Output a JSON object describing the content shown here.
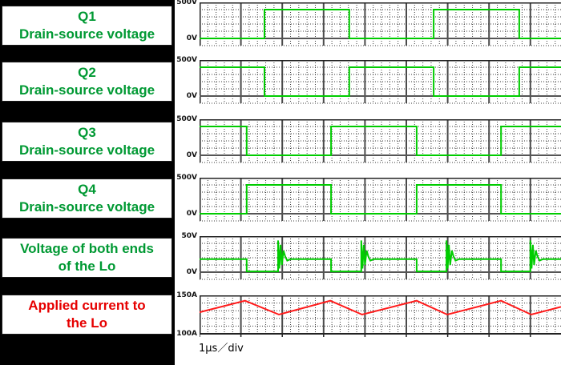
{
  "caption": "1μs／div",
  "colors": {
    "panel_bg": "#000000",
    "box_bg": "#ffffff",
    "text_green": "#009933",
    "text_red": "#e60000",
    "wave_green": "#00cc00",
    "wave_red": "#ff1a1a",
    "grid_minor": "#3a3a3a",
    "grid_major": "#4a4a4a",
    "axis_dark": "#222222",
    "zero_line": "#555555"
  },
  "chart_data": {
    "type": "line",
    "x_unit": "μs",
    "x_per_div": 1,
    "x_total_div": 8.74,
    "time_caption": "1μs／div",
    "panels": [
      {
        "label_lines": [
          "Q1",
          "Drain-source voltage"
        ],
        "label_color_key": "text_green",
        "wave_color_key": "wave_green",
        "y_top_label": "500V",
        "y_bottom_label": "0V",
        "ymax": 500,
        "ymin": 0,
        "points": [
          [
            0,
            0
          ],
          [
            1.57,
            0
          ],
          [
            1.57,
            400
          ],
          [
            3.62,
            400
          ],
          [
            3.62,
            0
          ],
          [
            5.66,
            0
          ],
          [
            5.66,
            400
          ],
          [
            7.73,
            400
          ],
          [
            7.73,
            0
          ],
          [
            8.74,
            0
          ]
        ]
      },
      {
        "label_lines": [
          "Q2",
          "Drain-source voltage"
        ],
        "label_color_key": "text_green",
        "wave_color_key": "wave_green",
        "y_top_label": "500V",
        "y_bottom_label": "0V",
        "ymax": 500,
        "ymin": 0,
        "points": [
          [
            0,
            400
          ],
          [
            1.57,
            400
          ],
          [
            1.57,
            0
          ],
          [
            3.62,
            0
          ],
          [
            3.62,
            400
          ],
          [
            5.66,
            400
          ],
          [
            5.66,
            0
          ],
          [
            7.73,
            0
          ],
          [
            7.73,
            400
          ],
          [
            8.74,
            400
          ]
        ]
      },
      {
        "label_lines": [
          "Q3",
          "Drain-source voltage"
        ],
        "label_color_key": "text_green",
        "wave_color_key": "wave_green",
        "y_top_label": "500V",
        "y_bottom_label": "0V",
        "ymax": 500,
        "ymin": 0,
        "points": [
          [
            0,
            400
          ],
          [
            1.14,
            400
          ],
          [
            1.14,
            0
          ],
          [
            3.18,
            0
          ],
          [
            3.18,
            400
          ],
          [
            5.25,
            400
          ],
          [
            5.25,
            0
          ],
          [
            7.29,
            0
          ],
          [
            7.29,
            400
          ],
          [
            8.74,
            400
          ]
        ]
      },
      {
        "label_lines": [
          "Q4",
          "Drain-source voltage"
        ],
        "label_color_key": "text_green",
        "wave_color_key": "wave_green",
        "y_top_label": "500V",
        "y_bottom_label": "0V",
        "ymax": 500,
        "ymin": 0,
        "points": [
          [
            0,
            0
          ],
          [
            1.14,
            0
          ],
          [
            1.14,
            400
          ],
          [
            3.18,
            400
          ],
          [
            3.18,
            0
          ],
          [
            5.25,
            0
          ],
          [
            5.25,
            400
          ],
          [
            7.29,
            400
          ],
          [
            7.29,
            0
          ],
          [
            8.74,
            0
          ]
        ]
      },
      {
        "label_lines": [
          "Voltage of both ends",
          "of the Lo"
        ],
        "label_color_key": "text_green",
        "wave_color_key": "wave_green",
        "y_top_label": "50V",
        "y_bottom_label": "0V",
        "ymax": 50,
        "ymin": 0,
        "points": [
          [
            0,
            18
          ],
          [
            1.14,
            18
          ],
          [
            1.14,
            1
          ],
          [
            1.9,
            1
          ],
          [
            1.9,
            44
          ],
          [
            1.93,
            5
          ],
          [
            1.96,
            38
          ],
          [
            1.99,
            10
          ],
          [
            2.03,
            30
          ],
          [
            2.07,
            22
          ],
          [
            2.12,
            16
          ],
          [
            2.2,
            18
          ],
          [
            3.18,
            18
          ],
          [
            3.18,
            1
          ],
          [
            3.91,
            1
          ],
          [
            3.91,
            44
          ],
          [
            3.94,
            5
          ],
          [
            3.97,
            38
          ],
          [
            4.0,
            10
          ],
          [
            4.04,
            30
          ],
          [
            4.08,
            22
          ],
          [
            4.13,
            16
          ],
          [
            4.21,
            18
          ],
          [
            5.25,
            18
          ],
          [
            5.25,
            1
          ],
          [
            5.97,
            1
          ],
          [
            5.97,
            44
          ],
          [
            6.0,
            5
          ],
          [
            6.03,
            38
          ],
          [
            6.06,
            10
          ],
          [
            6.1,
            30
          ],
          [
            6.14,
            22
          ],
          [
            6.19,
            16
          ],
          [
            6.27,
            18
          ],
          [
            7.29,
            18
          ],
          [
            7.29,
            1
          ],
          [
            8.0,
            1
          ],
          [
            8.0,
            44
          ],
          [
            8.03,
            5
          ],
          [
            8.06,
            38
          ],
          [
            8.09,
            10
          ],
          [
            8.13,
            30
          ],
          [
            8.17,
            22
          ],
          [
            8.22,
            16
          ],
          [
            8.3,
            18
          ],
          [
            8.74,
            18
          ]
        ]
      },
      {
        "label_lines": [
          "Applied current to",
          "the Lo"
        ],
        "label_color_key": "text_red",
        "wave_color_key": "wave_red",
        "y_top_label": "150A",
        "y_bottom_label": "100A",
        "ymax": 150,
        "ymin": 100,
        "points": [
          [
            0,
            128
          ],
          [
            1.1,
            143
          ],
          [
            1.92,
            125
          ],
          [
            3.16,
            143
          ],
          [
            3.93,
            125
          ],
          [
            5.25,
            143
          ],
          [
            5.99,
            125
          ],
          [
            7.29,
            143
          ],
          [
            8.02,
            125
          ],
          [
            8.74,
            135
          ]
        ]
      }
    ]
  }
}
